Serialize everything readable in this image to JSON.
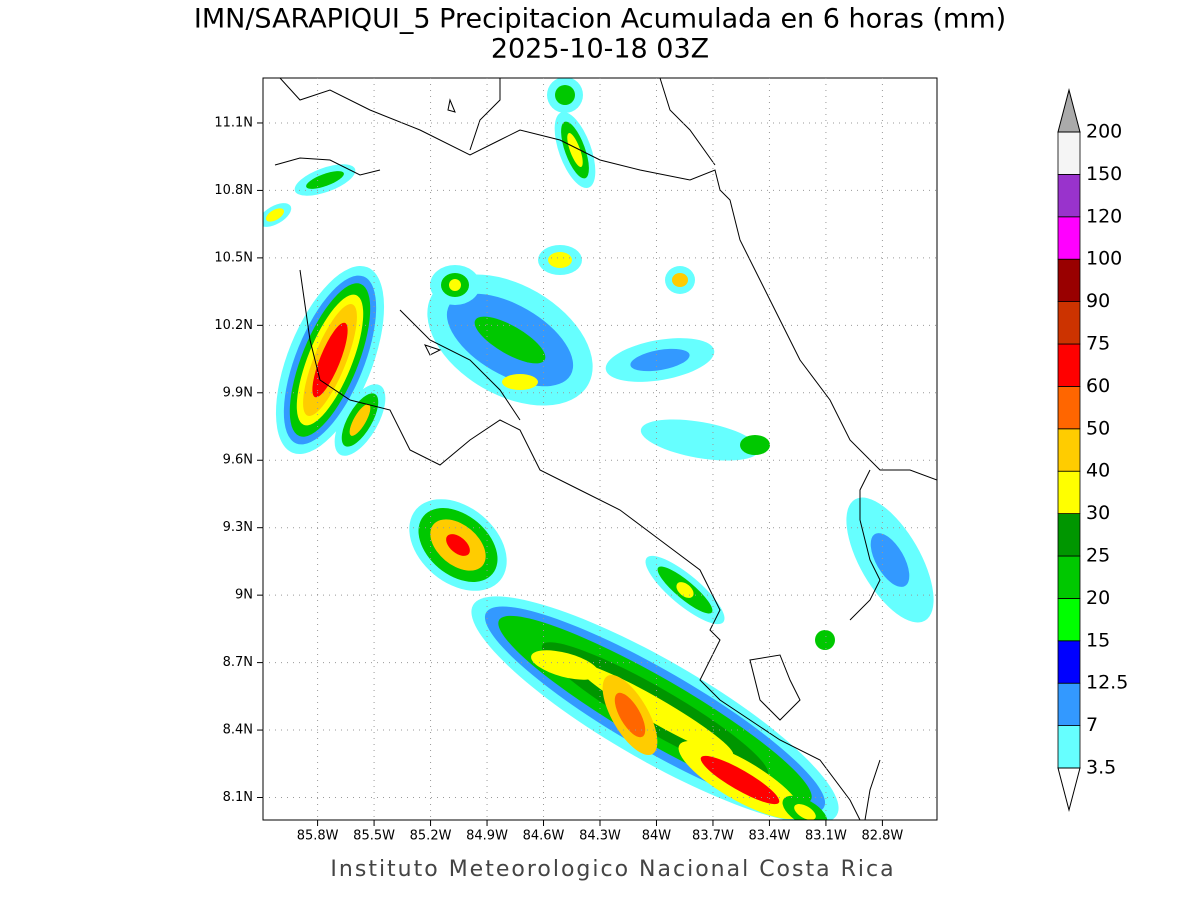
{
  "title": "IMN/SARAPIQUI_5 Precipitacion Acumulada en 6 horas (mm)",
  "subtitle": "2025-10-18 03Z",
  "footer": "Instituto Meteorologico Nacional Costa Rica",
  "map": {
    "xlim": [
      -86.09,
      -82.51
    ],
    "ylim": [
      8.0,
      11.3
    ],
    "grid": true,
    "xticks": [
      {
        "value": -85.8,
        "label": "85.8W"
      },
      {
        "value": -85.5,
        "label": "85.5W"
      },
      {
        "value": -85.2,
        "label": "85.2W"
      },
      {
        "value": -84.9,
        "label": "84.9W"
      },
      {
        "value": -84.6,
        "label": "84.6W"
      },
      {
        "value": -84.3,
        "label": "84.3W"
      },
      {
        "value": -84,
        "label": "84W"
      },
      {
        "value": -83.7,
        "label": "83.7W"
      },
      {
        "value": -83.4,
        "label": "83.4W"
      },
      {
        "value": -83.1,
        "label": "83.1W"
      },
      {
        "value": -82.8,
        "label": "82.8W"
      }
    ],
    "yticks": [
      {
        "value": 11.1,
        "label": "11.1N"
      },
      {
        "value": 10.8,
        "label": "10.8N"
      },
      {
        "value": 10.5,
        "label": "10.5N"
      },
      {
        "value": 10.2,
        "label": "10.2N"
      },
      {
        "value": 9.9,
        "label": "9.9N"
      },
      {
        "value": 9.6,
        "label": "9.6N"
      },
      {
        "value": 9.3,
        "label": "9.3N"
      },
      {
        "value": 9,
        "label": "9N"
      },
      {
        "value": 8.7,
        "label": "8.7N"
      },
      {
        "value": 8.4,
        "label": "8.4N"
      },
      {
        "value": 8.1,
        "label": "8.1N"
      }
    ]
  },
  "colorbar": {
    "levels": [
      3.5,
      7,
      12.5,
      15,
      20,
      25,
      30,
      40,
      50,
      60,
      75,
      90,
      100,
      120,
      150,
      200
    ],
    "colors": [
      "#66ffff",
      "#3399ff",
      "#0000ff",
      "#00ff00",
      "#00c800",
      "#009600",
      "#ffff00",
      "#ffcc00",
      "#ff6600",
      "#ff0000",
      "#cc3300",
      "#990000",
      "#ff00ff",
      "#9933cc",
      "#f5f5f5"
    ],
    "over_color": "#aaaaaa",
    "under_color": "#ffffff"
  }
}
